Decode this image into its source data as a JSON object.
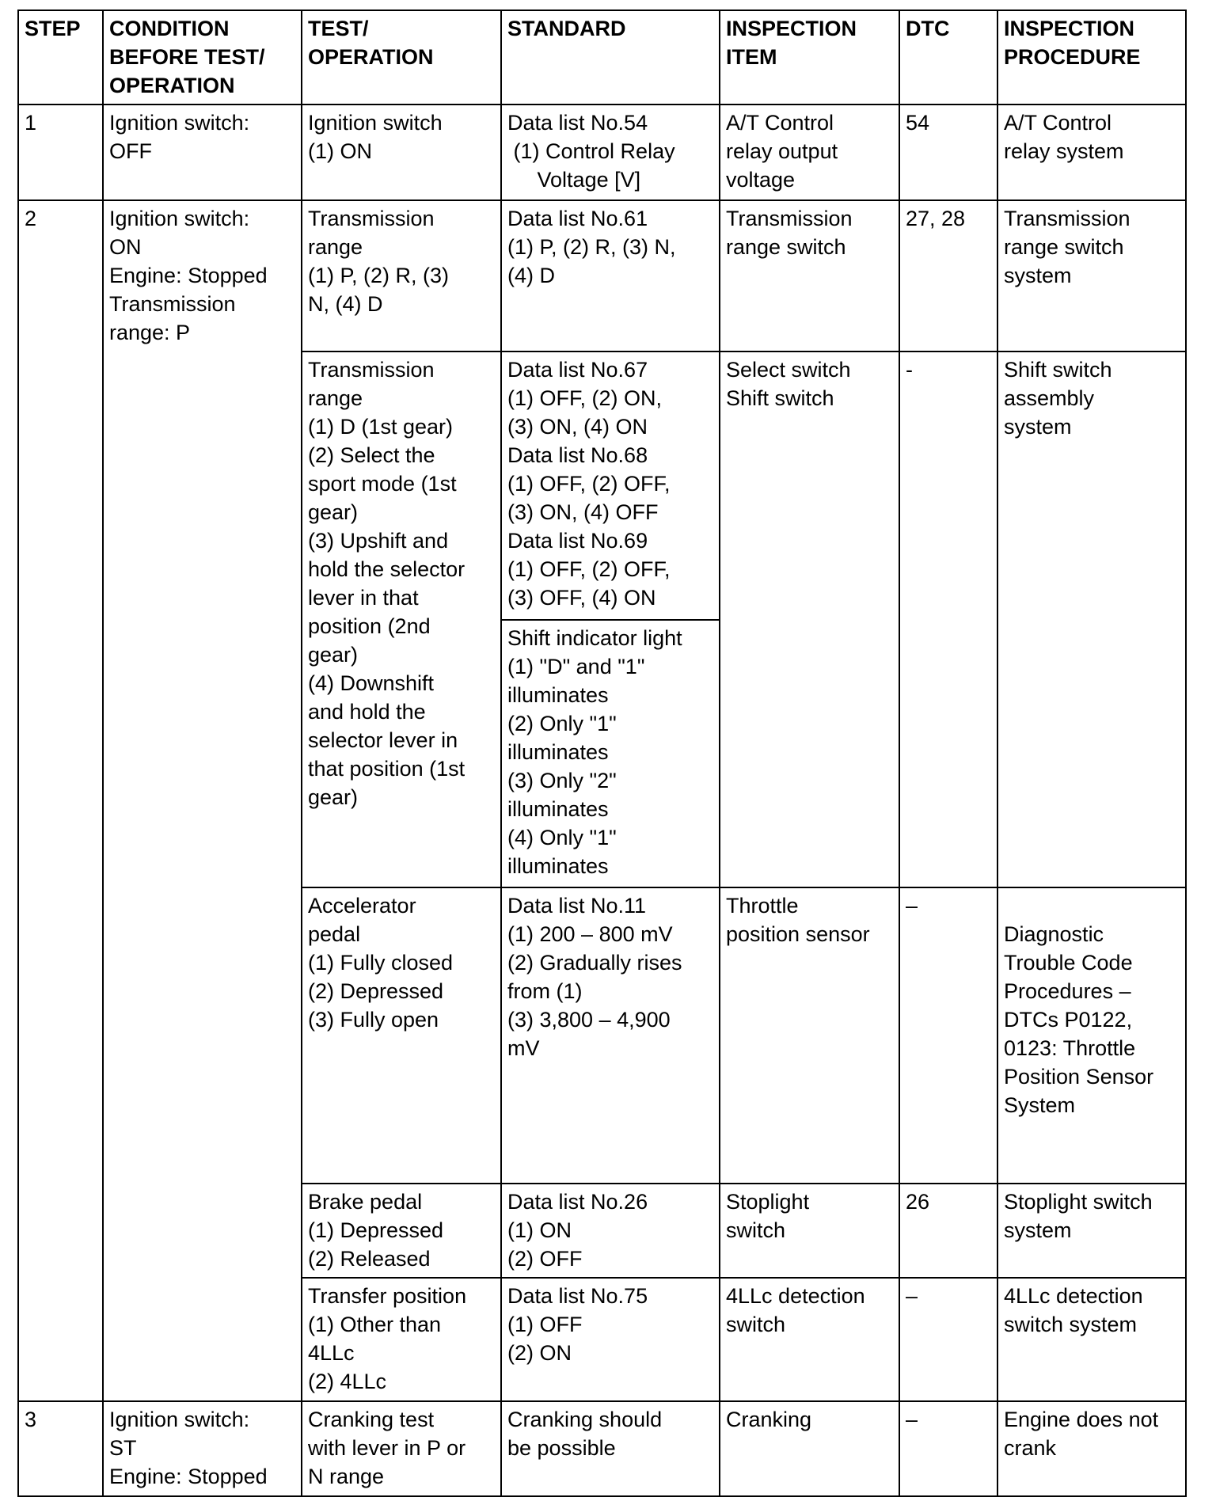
{
  "headers": [
    "STEP",
    "CONDITION\nBEFORE TEST/\nOPERATION",
    "TEST/\nOPERATION",
    "STANDARD",
    "INSPECTION\nITEM",
    "DTC",
    "INSPECTION\nPROCEDURE"
  ],
  "step1": {
    "step": "1",
    "condition": "Ignition switch:\nOFF",
    "test": "Ignition switch\n(1) ON",
    "standard": "Data list No.54\n (1) Control Relay\n     Voltage [V]",
    "item": "A/T Control\nrelay output\nvoltage",
    "dtc": "54",
    "procedure": "A/T Control\nrelay system"
  },
  "step2": {
    "step": "2",
    "condition": "Ignition switch:\nON\nEngine: Stopped\nTransmission\nrange: P",
    "rows": [
      {
        "test": "Transmission\nrange\n(1) P, (2) R, (3)\nN, (4) D",
        "standard": "Data list No.61\n(1) P, (2) R, (3) N,\n(4) D",
        "item": "Transmission\nrange switch",
        "dtc": "27, 28",
        "procedure": "Transmission\nrange switch\nsystem"
      },
      {
        "test": "Transmission\nrange\n(1) D (1st gear)\n(2) Select the\nsport mode (1st\ngear)\n(3) Upshift and\nhold the selector\nlever in that\nposition (2nd\ngear)\n(4) Downshift\nand hold the\nselector lever in\nthat position (1st\ngear)",
        "standard": "Data list No.67\n(1) OFF, (2) ON,\n(3) ON, (4) ON\nData list No.68\n(1) OFF, (2) OFF,\n(3) ON, (4) OFF\nData list No.69\n(1) OFF, (2) OFF,\n(3) OFF, (4) ON",
        "standard_2": "Shift indicator light\n(1) \"D\" and \"1\"\nilluminates\n(2) Only \"1\"\nilluminates\n(3) Only \"2\"\nilluminates\n(4) Only \"1\"\nilluminates",
        "item": "Select switch\nShift switch",
        "dtc": "-",
        "procedure": "Shift switch\nassembly\nsystem"
      },
      {
        "test": "Accelerator\npedal\n(1) Fully closed\n(2) Depressed\n(3) Fully open",
        "standard": "Data list No.11\n(1) 200 – 800 mV\n(2) Gradually rises\nfrom (1)\n(3) 3,800 – 4,900\nmV",
        "item": "Throttle\nposition sensor",
        "dtc": "–",
        "procedure": "\nDiagnostic\nTrouble Code\nProcedures –\nDTCs P0122,\n0123: Throttle\nPosition Sensor\nSystem"
      },
      {
        "test": "Brake pedal\n(1) Depressed\n(2) Released",
        "standard": "Data list No.26\n(1) ON\n(2) OFF",
        "item": "Stoplight\nswitch",
        "dtc": "26",
        "procedure": "Stoplight switch\nsystem"
      },
      {
        "test": "Transfer position\n(1) Other than\n4LLc\n(2) 4LLc",
        "standard": "Data list No.75\n(1) OFF\n(2) ON",
        "item": "4LLc detection\nswitch",
        "dtc": "–",
        "procedure": "4LLc detection\nswitch system"
      }
    ]
  },
  "step3": {
    "step": "3",
    "condition": "Ignition switch:\nST\nEngine: Stopped",
    "test": "Cranking test\nwith lever in P or\nN range",
    "standard": "Cranking should\nbe possible",
    "item": "Cranking",
    "dtc": "–",
    "procedure": "Engine does not\ncrank"
  }
}
